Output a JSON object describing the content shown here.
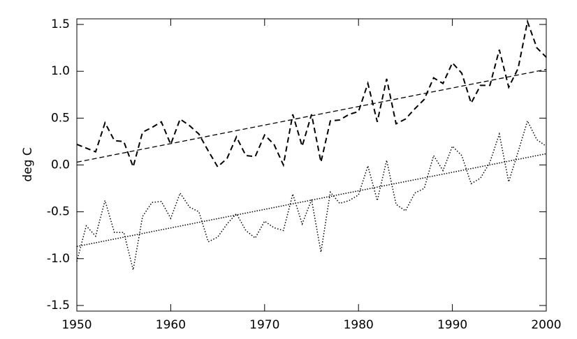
{
  "chart_data": {
    "type": "line",
    "ylabel": "deg C",
    "x": [
      1950,
      1951,
      1952,
      1953,
      1954,
      1955,
      1956,
      1957,
      1958,
      1959,
      1960,
      1961,
      1962,
      1963,
      1964,
      1965,
      1966,
      1967,
      1968,
      1969,
      1970,
      1971,
      1972,
      1973,
      1974,
      1975,
      1976,
      1977,
      1978,
      1979,
      1980,
      1981,
      1982,
      1983,
      1984,
      1985,
      1986,
      1987,
      1988,
      1989,
      1990,
      1991,
      1992,
      1993,
      1994,
      1995,
      1996,
      1997,
      1998,
      1999,
      2000
    ],
    "series": [
      {
        "color": "#000000",
        "style": "dashed",
        "values": [
          0.22,
          0.18,
          0.14,
          0.45,
          0.26,
          0.25,
          -0.02,
          0.35,
          0.4,
          0.46,
          0.22,
          0.49,
          0.42,
          0.33,
          0.15,
          -0.02,
          0.07,
          0.3,
          0.1,
          0.09,
          0.32,
          0.22,
          0.0,
          0.54,
          0.2,
          0.54,
          0.03,
          0.47,
          0.48,
          0.54,
          0.57,
          0.87,
          0.46,
          0.92,
          0.44,
          0.49,
          0.6,
          0.7,
          0.93,
          0.87,
          1.09,
          0.98,
          0.66,
          0.85,
          0.85,
          1.23,
          0.83,
          1.03,
          1.53,
          1.25,
          1.15
        ]
      },
      {
        "color": "#000000",
        "style": "dotted",
        "values": [
          -1.03,
          -0.65,
          -0.76,
          -0.38,
          -0.72,
          -0.72,
          -1.12,
          -0.55,
          -0.4,
          -0.39,
          -0.57,
          -0.3,
          -0.45,
          -0.5,
          -0.82,
          -0.77,
          -0.63,
          -0.52,
          -0.7,
          -0.78,
          -0.6,
          -0.67,
          -0.7,
          -0.31,
          -0.63,
          -0.37,
          -0.93,
          -0.29,
          -0.41,
          -0.38,
          -0.32,
          -0.01,
          -0.38,
          0.05,
          -0.42,
          -0.49,
          -0.3,
          -0.25,
          0.1,
          -0.06,
          0.2,
          0.1,
          -0.2,
          -0.14,
          0.03,
          0.33,
          -0.18,
          0.14,
          0.47,
          0.27,
          0.2
        ]
      },
      {
        "color": "#000000",
        "style": "dashed-thin",
        "x": [
          1950,
          2000
        ],
        "values": [
          0.03,
          1.02
        ]
      },
      {
        "color": "#000000",
        "style": "dotted-thin",
        "x": [
          1950,
          2000
        ],
        "values": [
          -0.87,
          0.12
        ]
      }
    ],
    "xlim": [
      1950,
      2000
    ],
    "xticks": [
      1950,
      1960,
      1970,
      1980,
      1990,
      2000
    ],
    "ylim": [
      -1.56,
      1.56
    ],
    "yticks": [
      -1.5,
      {
        "value": -1,
        "label": "-1.0"
      },
      -0.5,
      {
        "value": 0,
        "label": "0.0"
      },
      0.5,
      {
        "value": 1,
        "label": "1.0"
      },
      1.5
    ],
    "grid": false
  }
}
